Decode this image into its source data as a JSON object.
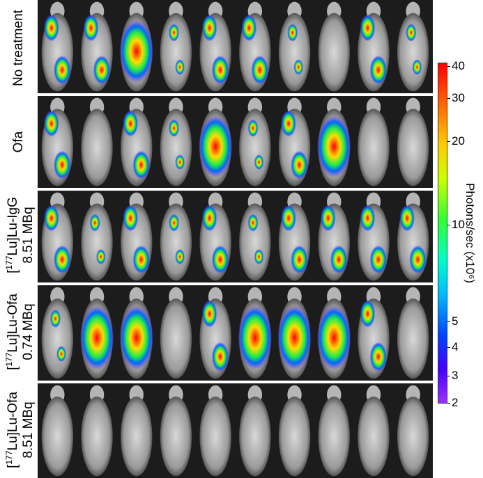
{
  "rows": [
    {
      "label_lines": [
        "No treatment"
      ]
    },
    {
      "label_lines": [
        "Ofa"
      ]
    },
    {
      "label_lines": [
        "[177Lu]Lu-IgG",
        "8.51 MBq"
      ]
    },
    {
      "label_lines": [
        "[177Lu]Lu-Ofa",
        "0.74 MBq"
      ]
    },
    {
      "label_lines": [
        "[177Lu]Lu-Ofa",
        "8.51 MBq"
      ]
    }
  ],
  "colorbar": {
    "title": "Photons/sec  (x10⁶)",
    "ticks": [
      "40",
      "30",
      "20",
      "10",
      "5",
      "4",
      "3",
      "2"
    ],
    "scale": "log",
    "range": [
      2,
      40
    ]
  },
  "mice_per_row": 10
}
